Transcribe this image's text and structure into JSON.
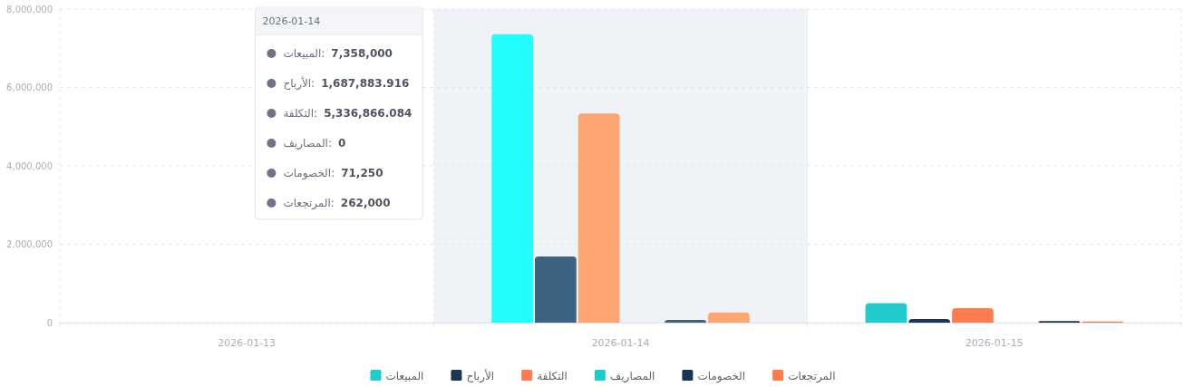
{
  "chart_data": {
    "type": "bar",
    "categories": [
      "2026-01-13",
      "2026-01-14",
      "2026-01-15"
    ],
    "series": [
      {
        "name": "المبيعات",
        "color": "#22cbcb",
        "colors": [
          null,
          "#22fdfd",
          "#22cbcb"
        ],
        "values": [
          null,
          7358000,
          500000
        ]
      },
      {
        "name": "الأرباح",
        "color": "#1c3651",
        "colors": [
          null,
          "#3d6383",
          "#1c3651"
        ],
        "values": [
          null,
          1687883.916,
          90000
        ]
      },
      {
        "name": "التكلفة",
        "color": "#ff7b50",
        "colors": [
          null,
          "#fea672",
          "#ff7b50"
        ],
        "values": [
          null,
          5336866.084,
          370000
        ]
      },
      {
        "name": "المصاريف",
        "color": "#22cbcb",
        "colors": [
          null,
          "#22fdfd",
          "#22cbcb"
        ],
        "values": [
          null,
          0,
          0
        ]
      },
      {
        "name": "الخصومات",
        "color": "#1c3651",
        "colors": [
          null,
          "#3d6383",
          "#1c3651"
        ],
        "values": [
          null,
          71250,
          40000
        ]
      },
      {
        "name": "المرتجعات",
        "color": "#ff7b50",
        "colors": [
          null,
          "#fea672",
          "#ff7b50"
        ],
        "values": [
          null,
          262000,
          30000
        ]
      }
    ],
    "ylim": [
      0,
      8000000
    ],
    "yticks": [
      0,
      {
        "value": 2000000,
        "label": "2,000,000"
      },
      {
        "value": 4000000,
        "label": "4,000,000"
      },
      {
        "value": 6000000,
        "label": "6,000,000"
      },
      {
        "value": 8000000,
        "label": "8,000,000"
      }
    ],
    "grid": true,
    "legend": "bottom",
    "bands": [
      {
        "axis": "x",
        "from": "2026-01-14",
        "to": "2026-01-14",
        "color": "#eff2f7"
      }
    ],
    "annotations": [
      "2026-01-14",
      "المبيعات:",
      "7,358,000",
      "الأرباح:",
      "1,687,883.916",
      "التكلفة:",
      "5,336,866.084",
      "المصاريف:",
      "0",
      "الخصومات:",
      "71,250",
      "المرتجعات:",
      "262,000"
    ]
  }
}
